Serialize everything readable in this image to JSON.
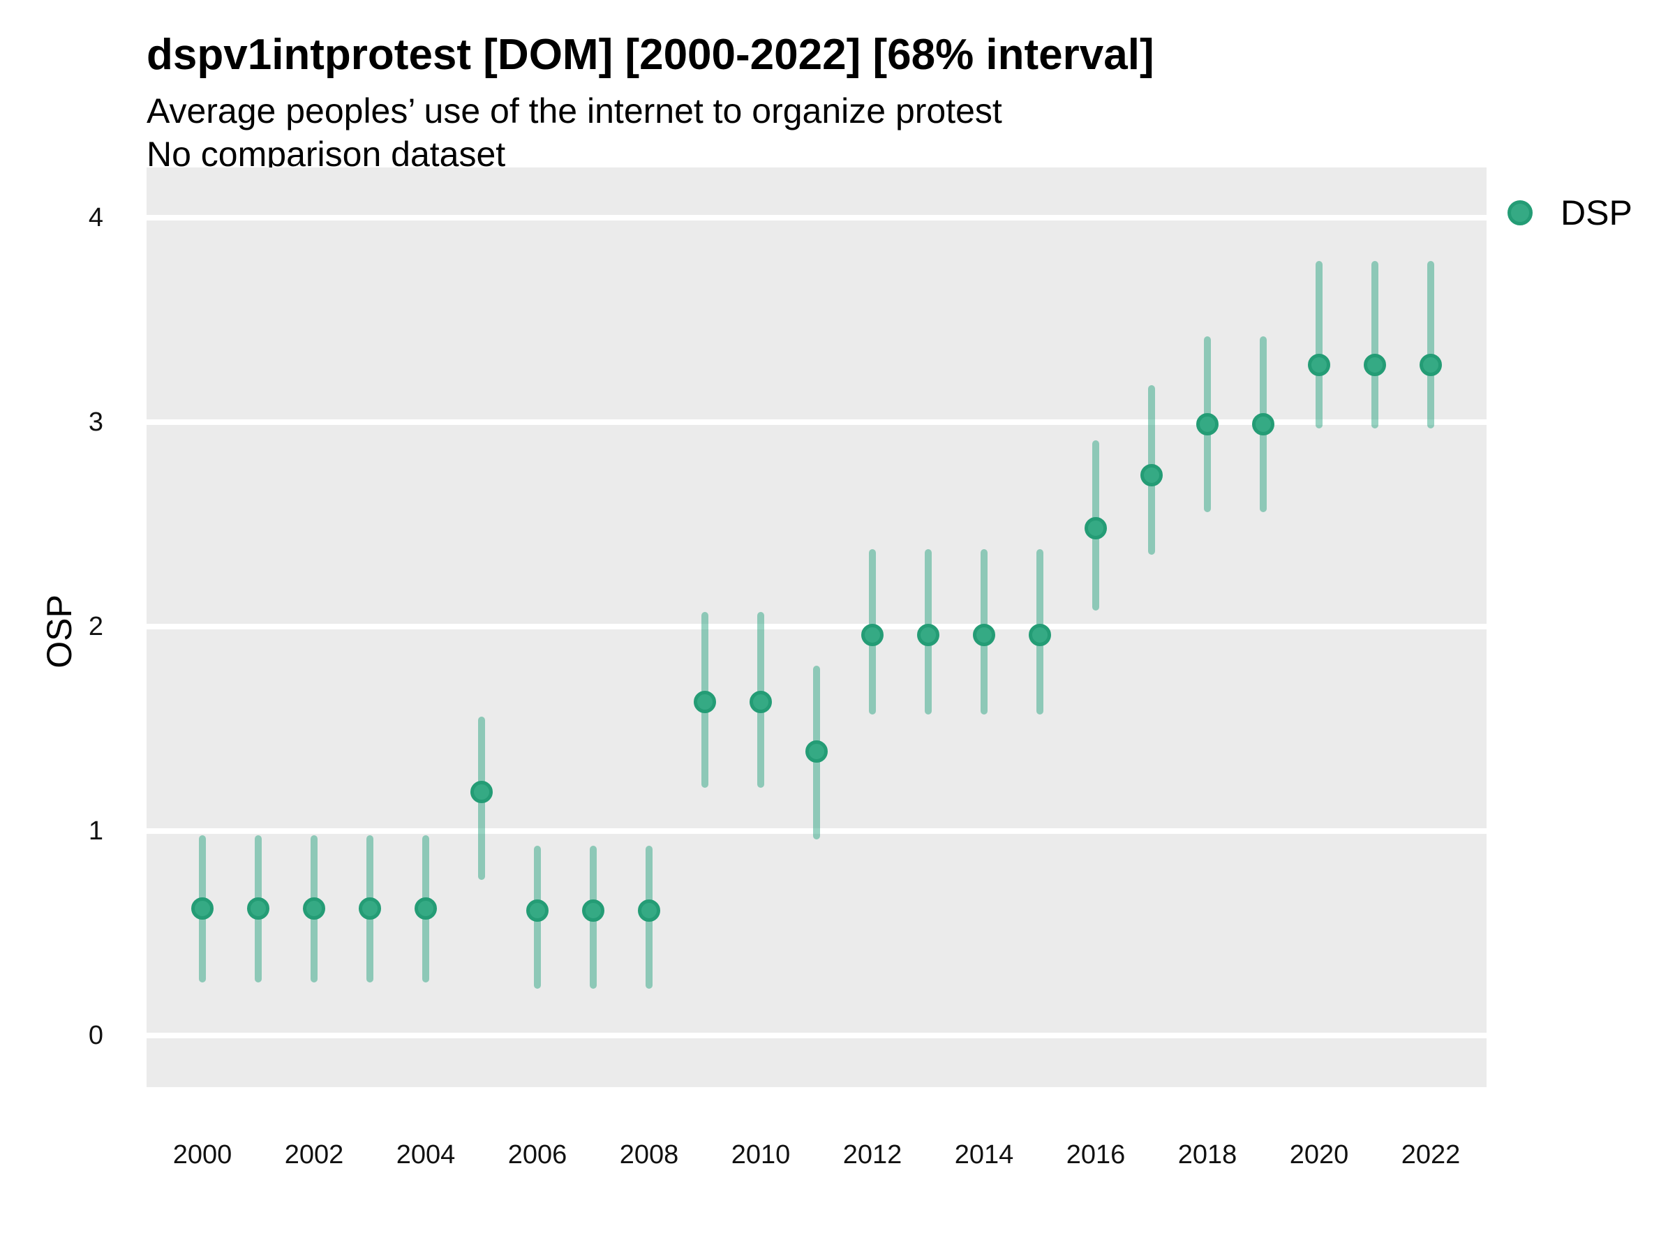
{
  "header": {
    "title": "dspv1intprotest [DOM] [2000-2022] [68% interval]",
    "subtitle_line1": "Average peoples’ use of the internet to organize protest",
    "subtitle_line2": "No comparison dataset"
  },
  "legend": {
    "items": [
      {
        "label": "DSP",
        "color": "#1B9E77"
      }
    ],
    "position": "right"
  },
  "colors": {
    "point_fill": "#35AA84",
    "point_stroke": "#249C75",
    "interval_line": "rgba(27,158,119,0.45)",
    "panel_background": "#EBEBEB",
    "gridline": "#FFFFFF",
    "text": "#000000"
  },
  "chart_data": {
    "type": "scatter",
    "title": "dspv1intprotest [DOM] [2000-2022] [68% interval]",
    "subtitle": "Average peoples’ use of the internet to organize protest — No comparison dataset",
    "xlabel": "",
    "ylabel": "OSP",
    "interval_level": "68%",
    "grid": "horizontal-major-only",
    "legend_position": "right",
    "x": [
      2000,
      2001,
      2002,
      2003,
      2004,
      2005,
      2006,
      2007,
      2008,
      2009,
      2010,
      2011,
      2012,
      2013,
      2014,
      2015,
      2016,
      2017,
      2018,
      2019,
      2020,
      2021,
      2022
    ],
    "series": [
      {
        "name": "DSP",
        "values": [
          0.62,
          0.62,
          0.62,
          0.62,
          0.62,
          1.19,
          0.61,
          0.61,
          0.61,
          1.63,
          1.63,
          1.39,
          1.96,
          1.96,
          1.96,
          1.96,
          2.48,
          2.74,
          2.99,
          2.99,
          3.28,
          3.28,
          3.28
        ],
        "interval_low": [
          0.26,
          0.26,
          0.26,
          0.26,
          0.26,
          0.76,
          0.23,
          0.23,
          0.23,
          1.21,
          1.21,
          0.96,
          1.57,
          1.57,
          1.57,
          1.57,
          2.08,
          2.35,
          2.56,
          2.56,
          2.97,
          2.97,
          2.97
        ],
        "interval_high": [
          0.98,
          0.98,
          0.98,
          0.98,
          0.98,
          1.56,
          0.93,
          0.93,
          0.93,
          2.07,
          2.07,
          1.81,
          2.38,
          2.38,
          2.38,
          2.38,
          2.91,
          3.18,
          3.42,
          3.42,
          3.79,
          3.79,
          3.79
        ]
      }
    ],
    "x_ticks": [
      2000,
      2002,
      2004,
      2006,
      2008,
      2010,
      2012,
      2014,
      2016,
      2018,
      2020,
      2022
    ],
    "y_ticks": [
      0,
      1,
      2,
      3,
      4
    ],
    "xlim": [
      1999,
      2023
    ],
    "ylim": [
      -0.25,
      4.25
    ]
  }
}
